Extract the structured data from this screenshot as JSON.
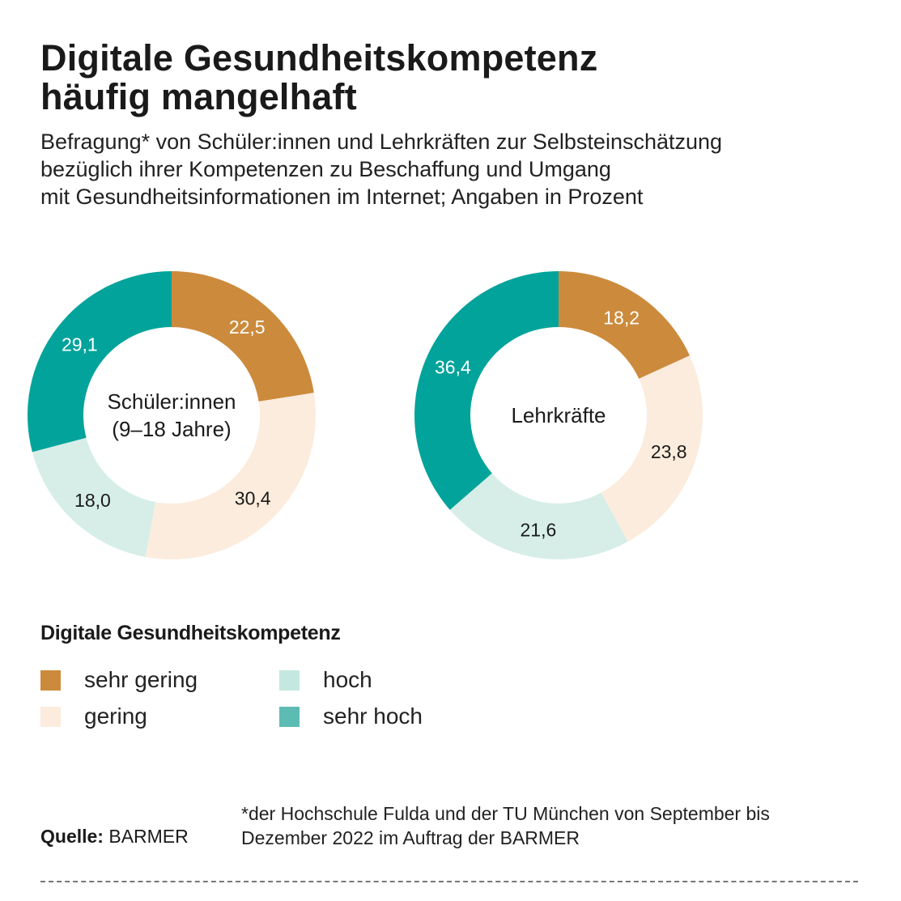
{
  "title": {
    "line1": "Digitale Gesundheitskompetenz",
    "line2": "häufig mangelhaft"
  },
  "subtitle": {
    "line1": "Befragung* von Schüler:innen und Lehrkräften zur Selbsteinschätzung",
    "line2": "bezüglich ihrer Kompetenzen zu Beschaffung und Umgang",
    "line3": "mit Gesundheitsinformationen im Internet; Angaben in Prozent"
  },
  "colors": {
    "sehr_gering": "#cc8b3c",
    "gering": "#fcecdd",
    "hoch": "#d7eee8",
    "sehr_hoch": "#02a39b",
    "legend_hoch": "#c3e8e0",
    "legend_sehr_hoch": "#5cbcb4"
  },
  "chart_data": [
    {
      "type": "pie",
      "variant": "donut",
      "center_label": [
        "Schüler:innen",
        "(9–18 Jahre)"
      ],
      "categories": [
        "sehr gering",
        "gering",
        "hoch",
        "sehr hoch"
      ],
      "values": [
        22.5,
        30.4,
        18.0,
        29.1
      ],
      "labels": [
        "22,5",
        "30,4",
        "18,0",
        "29,1"
      ]
    },
    {
      "type": "pie",
      "variant": "donut",
      "center_label": [
        "Lehrkräfte"
      ],
      "categories": [
        "sehr gering",
        "gering",
        "hoch",
        "sehr hoch"
      ],
      "values": [
        18.2,
        23.8,
        21.6,
        36.4
      ],
      "labels": [
        "18,2",
        "23,8",
        "21,6",
        "36,4"
      ]
    }
  ],
  "legend": {
    "title": "Digitale Gesundheitskompetenz",
    "items": [
      "sehr gering",
      "gering",
      "hoch",
      "sehr hoch"
    ]
  },
  "source": {
    "label": "Quelle:",
    "value": "BARMER"
  },
  "footnote": {
    "line1": "*der Hochschule Fulda und der TU München von September bis",
    "line2": "Dezember 2022 im Auftrag der BARMER"
  }
}
